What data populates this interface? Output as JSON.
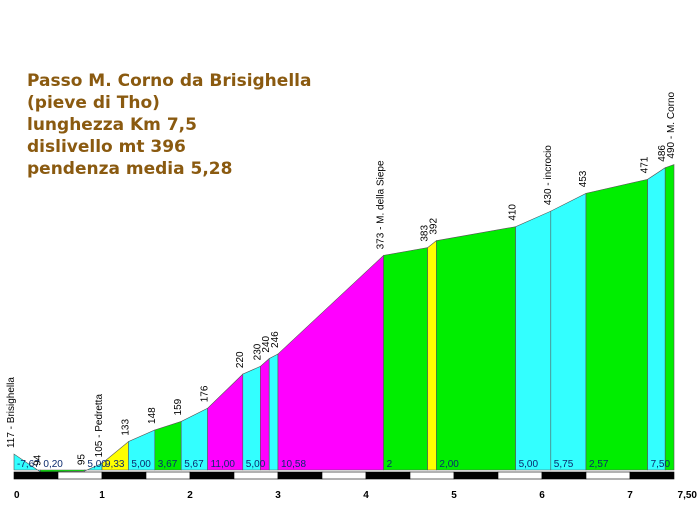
{
  "info": {
    "line1": "Passo M. Corno da Brisighella",
    "line2": "(pieve di Tho)",
    "line3": "lunghezza Km 7,5",
    "line4": "dislivello mt 396",
    "line5": "pendenza media 5,28"
  },
  "chart_data": {
    "type": "area",
    "x_axis": {
      "ticks": [
        "0",
        "1",
        "2",
        "3",
        "4",
        "5",
        "6",
        "7",
        "7,50"
      ],
      "range_km": [
        0,
        7.5
      ]
    },
    "points": [
      {
        "km": 0.0,
        "alt": 117,
        "label": "117 - Brisighella"
      },
      {
        "km": 0.3,
        "alt": 94,
        "label": "94"
      },
      {
        "km": 0.8,
        "alt": 95,
        "label": "95"
      },
      {
        "km": 1.0,
        "alt": 105,
        "label": "105 - Pedretta"
      },
      {
        "km": 1.3,
        "alt": 133,
        "label": "133"
      },
      {
        "km": 1.6,
        "alt": 148,
        "label": "148"
      },
      {
        "km": 1.9,
        "alt": 159,
        "label": "159"
      },
      {
        "km": 2.2,
        "alt": 176,
        "label": "176"
      },
      {
        "km": 2.6,
        "alt": 220,
        "label": "220"
      },
      {
        "km": 2.8,
        "alt": 230,
        "label": "230"
      },
      {
        "km": 2.9,
        "alt": 240,
        "label": "240"
      },
      {
        "km": 3.0,
        "alt": 246,
        "label": "246"
      },
      {
        "km": 4.2,
        "alt": 373,
        "label": "373 - M. della Siepe"
      },
      {
        "km": 4.7,
        "alt": 383,
        "label": "383"
      },
      {
        "km": 4.8,
        "alt": 392,
        "label": "392"
      },
      {
        "km": 5.7,
        "alt": 410,
        "label": "410"
      },
      {
        "km": 6.1,
        "alt": 430,
        "label": "430 - incrocio"
      },
      {
        "km": 6.5,
        "alt": 453,
        "label": "453"
      },
      {
        "km": 7.2,
        "alt": 471,
        "label": "471"
      },
      {
        "km": 7.4,
        "alt": 486,
        "label": "486"
      },
      {
        "km": 7.5,
        "alt": 490,
        "label": "490 - M. Corno"
      }
    ],
    "segments": [
      {
        "grade": "-7,67",
        "color": "#33ffff"
      },
      {
        "grade": "0,20",
        "color": "#00ee00"
      },
      {
        "grade": "5,00",
        "color": "#33ffff"
      },
      {
        "grade": "9,33",
        "color": "#ffff00"
      },
      {
        "grade": "5,00",
        "color": "#33ffff"
      },
      {
        "grade": "3,67",
        "color": "#00ee00"
      },
      {
        "grade": "5,67",
        "color": "#33ffff"
      },
      {
        "grade": "11,00",
        "color": "#ff00ff"
      },
      {
        "grade": "5,00",
        "color": "#33ffff"
      },
      {
        "grade": "",
        "color": "#ff00ff"
      },
      {
        "grade": "",
        "color": "#33ffff"
      },
      {
        "grade": "10,58",
        "color": "#ff00ff"
      },
      {
        "grade": "2",
        "color": "#00ee00"
      },
      {
        "grade": "",
        "color": "#ffff00"
      },
      {
        "grade": "2,00",
        "color": "#00ee00"
      },
      {
        "grade": "5,00",
        "color": "#33ffff"
      },
      {
        "grade": "5,75",
        "color": "#33ffff"
      },
      {
        "grade": "2,57",
        "color": "#00ee00"
      },
      {
        "grade": "7,50",
        "color": "#33ffff"
      },
      {
        "grade": "",
        "color": "#00ee00"
      }
    ]
  }
}
